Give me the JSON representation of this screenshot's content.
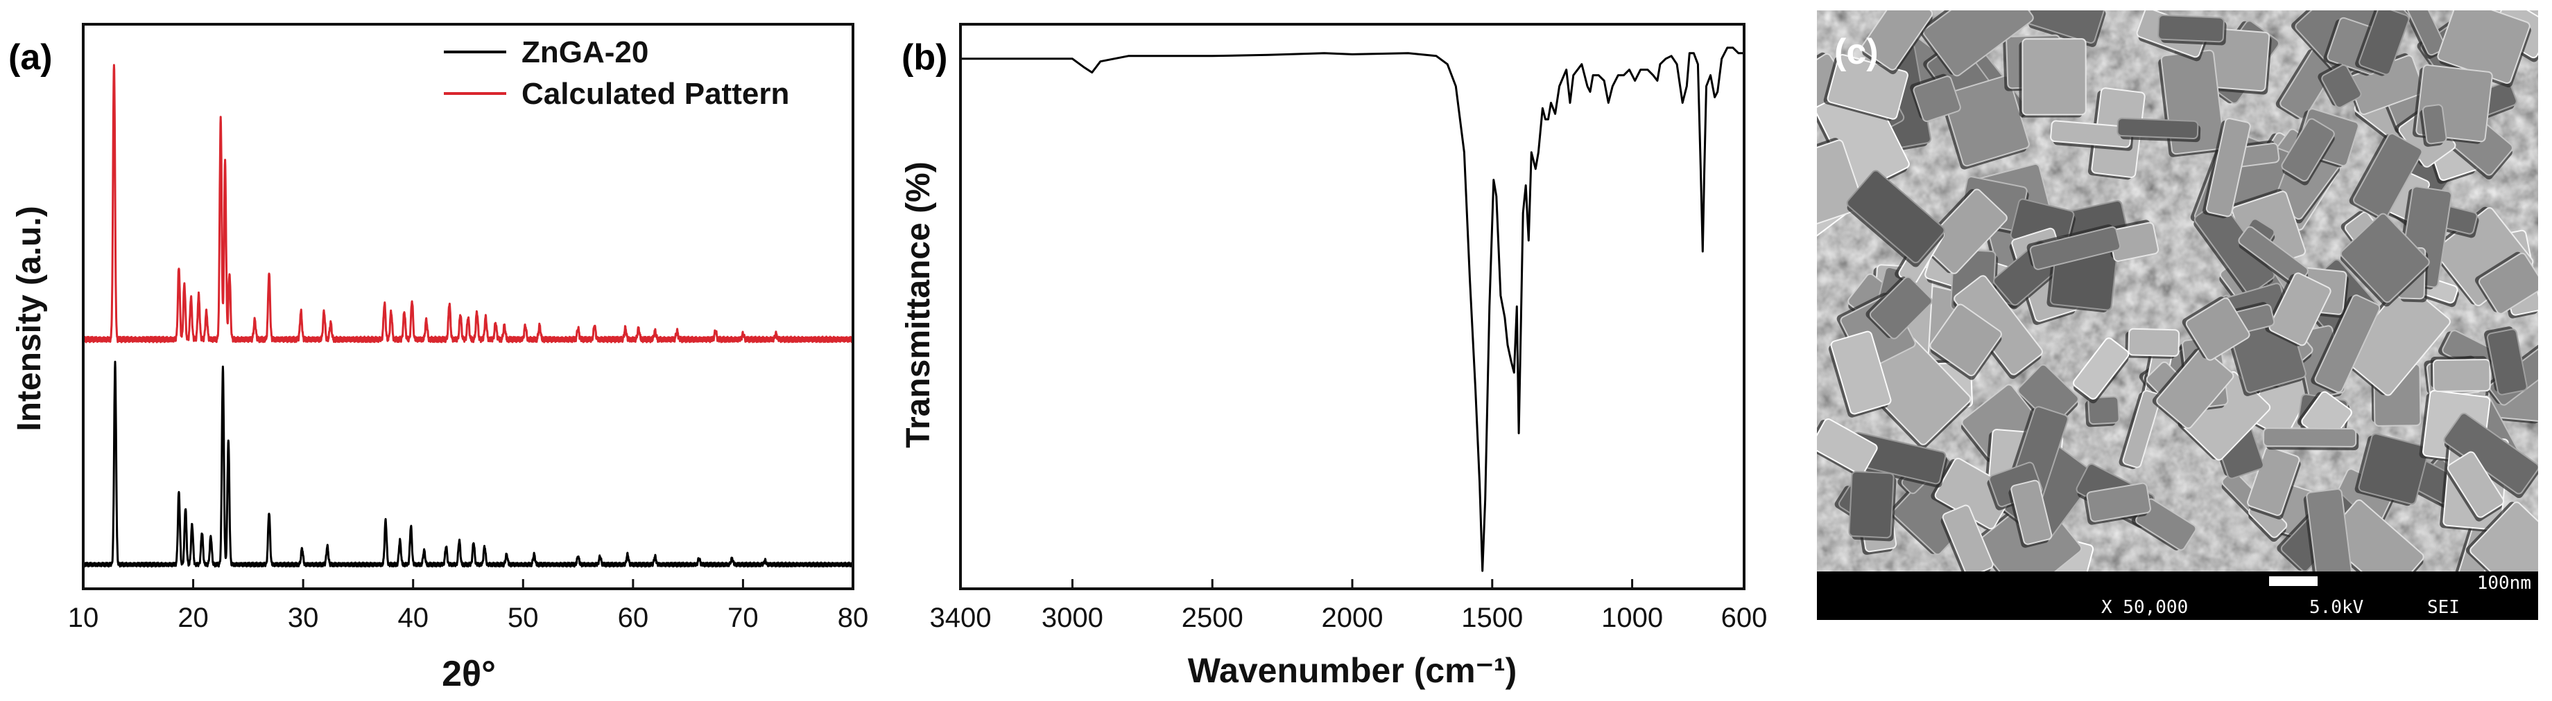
{
  "chart_data": [
    {
      "panel": "(a)",
      "type": "line",
      "xlabel": "2θ°",
      "ylabel": "Intensity (a.u.)",
      "xlim": [
        10,
        80
      ],
      "xticks": [
        "10",
        "20",
        "30",
        "40",
        "50",
        "60",
        "70",
        "80"
      ],
      "legend_position": "top-right",
      "series": [
        {
          "name": "ZnGA-20",
          "color": "#000000",
          "baseline": 0,
          "peaks": [
            [
              12.9,
              1.0
            ],
            [
              18.7,
              0.36
            ],
            [
              19.3,
              0.28
            ],
            [
              19.9,
              0.2
            ],
            [
              20.8,
              0.16
            ],
            [
              21.6,
              0.14
            ],
            [
              22.7,
              0.98
            ],
            [
              23.2,
              0.62
            ],
            [
              26.9,
              0.26
            ],
            [
              29.9,
              0.08
            ],
            [
              32.2,
              0.09
            ],
            [
              37.5,
              0.22
            ],
            [
              38.8,
              0.12
            ],
            [
              39.8,
              0.19
            ],
            [
              41.0,
              0.07
            ],
            [
              43.0,
              0.09
            ],
            [
              44.2,
              0.12
            ],
            [
              45.5,
              0.11
            ],
            [
              46.5,
              0.09
            ],
            [
              48.5,
              0.05
            ],
            [
              51.0,
              0.05
            ],
            [
              55.0,
              0.04
            ],
            [
              57.0,
              0.04
            ],
            [
              59.5,
              0.05
            ],
            [
              62.0,
              0.04
            ],
            [
              66.0,
              0.03
            ],
            [
              69.0,
              0.03
            ],
            [
              72.0,
              0.02
            ]
          ]
        },
        {
          "name": "Calculated Pattern",
          "color": "#d9262e",
          "baseline": 0,
          "peaks": [
            [
              12.8,
              1.0
            ],
            [
              18.7,
              0.26
            ],
            [
              19.2,
              0.2
            ],
            [
              19.8,
              0.15
            ],
            [
              20.5,
              0.16
            ],
            [
              21.2,
              0.1
            ],
            [
              22.5,
              0.8
            ],
            [
              22.9,
              0.64
            ],
            [
              23.3,
              0.24
            ],
            [
              25.6,
              0.07
            ],
            [
              26.9,
              0.24
            ],
            [
              29.8,
              0.1
            ],
            [
              31.9,
              0.1
            ],
            [
              32.5,
              0.06
            ],
            [
              37.4,
              0.13
            ],
            [
              38.0,
              0.1
            ],
            [
              39.2,
              0.1
            ],
            [
              39.9,
              0.14
            ],
            [
              41.2,
              0.07
            ],
            [
              43.3,
              0.13
            ],
            [
              44.3,
              0.09
            ],
            [
              45.0,
              0.08
            ],
            [
              45.8,
              0.1
            ],
            [
              46.6,
              0.08
            ],
            [
              47.5,
              0.06
            ],
            [
              48.3,
              0.05
            ],
            [
              50.2,
              0.05
            ],
            [
              51.5,
              0.05
            ],
            [
              55.0,
              0.04
            ],
            [
              56.5,
              0.05
            ],
            [
              59.3,
              0.04
            ],
            [
              60.5,
              0.04
            ],
            [
              62.0,
              0.03
            ],
            [
              64.0,
              0.03
            ],
            [
              67.5,
              0.03
            ],
            [
              70.0,
              0.02
            ],
            [
              73.0,
              0.02
            ]
          ]
        }
      ]
    },
    {
      "panel": "(b)",
      "type": "line",
      "xlabel": "Wavenumber (cm⁻¹)",
      "ylabel": "Transmittance (%)",
      "xlim": [
        3400,
        600
      ],
      "x_reversed": true,
      "xticks": [
        "3400",
        "3000",
        "2500",
        "2000",
        "1500",
        "1000",
        "600"
      ],
      "series": [
        {
          "name": "",
          "color": "#000000",
          "points": [
            [
              3400,
              0.95
            ],
            [
              3200,
              0.95
            ],
            [
              3000,
              0.95
            ],
            [
              2960,
              0.935
            ],
            [
              2930,
              0.925
            ],
            [
              2900,
              0.945
            ],
            [
              2800,
              0.955
            ],
            [
              2500,
              0.955
            ],
            [
              2300,
              0.957
            ],
            [
              2100,
              0.96
            ],
            [
              2000,
              0.958
            ],
            [
              1800,
              0.96
            ],
            [
              1700,
              0.955
            ],
            [
              1660,
              0.94
            ],
            [
              1630,
              0.9
            ],
            [
              1600,
              0.78
            ],
            [
              1580,
              0.55
            ],
            [
              1560,
              0.35
            ],
            [
              1545,
              0.18
            ],
            [
              1535,
              0.02
            ],
            [
              1525,
              0.15
            ],
            [
              1510,
              0.5
            ],
            [
              1495,
              0.73
            ],
            [
              1485,
              0.7
            ],
            [
              1470,
              0.52
            ],
            [
              1455,
              0.48
            ],
            [
              1445,
              0.43
            ],
            [
              1432,
              0.4
            ],
            [
              1422,
              0.38
            ],
            [
              1412,
              0.5
            ],
            [
              1405,
              0.27
            ],
            [
              1398,
              0.45
            ],
            [
              1390,
              0.67
            ],
            [
              1380,
              0.72
            ],
            [
              1370,
              0.62
            ],
            [
              1360,
              0.78
            ],
            [
              1345,
              0.75
            ],
            [
              1335,
              0.78
            ],
            [
              1320,
              0.86
            ],
            [
              1310,
              0.84
            ],
            [
              1300,
              0.84
            ],
            [
              1290,
              0.87
            ],
            [
              1275,
              0.85
            ],
            [
              1260,
              0.9
            ],
            [
              1235,
              0.93
            ],
            [
              1222,
              0.87
            ],
            [
              1210,
              0.92
            ],
            [
              1180,
              0.94
            ],
            [
              1160,
              0.9
            ],
            [
              1150,
              0.89
            ],
            [
              1140,
              0.92
            ],
            [
              1120,
              0.92
            ],
            [
              1100,
              0.91
            ],
            [
              1085,
              0.87
            ],
            [
              1070,
              0.9
            ],
            [
              1050,
              0.92
            ],
            [
              1030,
              0.92
            ],
            [
              1010,
              0.93
            ],
            [
              990,
              0.91
            ],
            [
              970,
              0.93
            ],
            [
              945,
              0.93
            ],
            [
              925,
              0.92
            ],
            [
              910,
              0.91
            ],
            [
              900,
              0.94
            ],
            [
              880,
              0.95
            ],
            [
              860,
              0.955
            ],
            [
              840,
              0.94
            ],
            [
              820,
              0.87
            ],
            [
              805,
              0.9
            ],
            [
              795,
              0.96
            ],
            [
              780,
              0.96
            ],
            [
              765,
              0.94
            ],
            [
              755,
              0.75
            ],
            [
              748,
              0.6
            ],
            [
              742,
              0.75
            ],
            [
              735,
              0.9
            ],
            [
              720,
              0.92
            ],
            [
              705,
              0.88
            ],
            [
              695,
              0.89
            ],
            [
              680,
              0.95
            ],
            [
              660,
              0.97
            ],
            [
              640,
              0.97
            ],
            [
              620,
              0.96
            ],
            [
              600,
              0.96
            ]
          ]
        }
      ]
    }
  ],
  "panels": {
    "a_label": "(a)",
    "b_label": "(b)",
    "c_label": "(c)"
  },
  "sem": {
    "scale_bar_label": "100nm",
    "magnification": "X 50,000",
    "voltage": "5.0kV",
    "mode": "SEI"
  }
}
